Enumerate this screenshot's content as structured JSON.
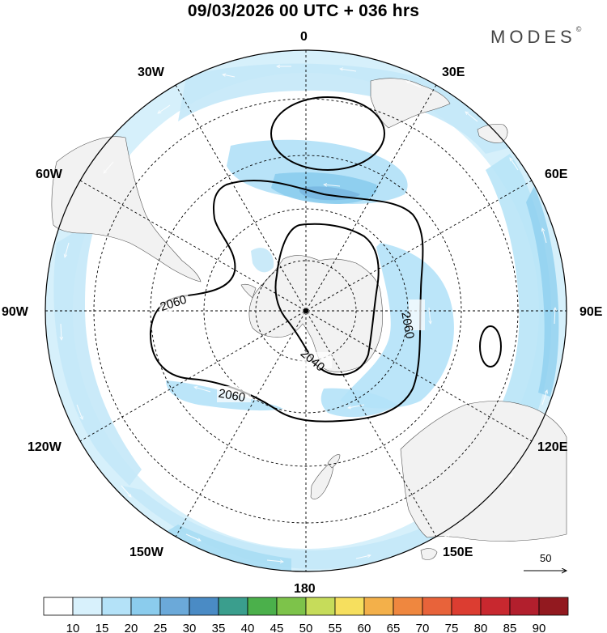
{
  "header": {
    "title": "09/03/2026  00 UTC  + 036 hrs",
    "brand": "MODES"
  },
  "map": {
    "projection": "south-polar-stereographic",
    "longitude_labels": {
      "top": "0",
      "top_right": "30E",
      "right_upper": "60E",
      "right": "90E",
      "right_lower": "120E",
      "bottom_right": "150E",
      "bottom": "180",
      "bottom_left": "150W",
      "left_lower": "120W",
      "left": "90W",
      "left_upper": "60W",
      "top_left": "30W"
    },
    "contour_labels": [
      "2060",
      "2060",
      "2060",
      "2040"
    ],
    "reference_vector": {
      "magnitude": "50"
    }
  },
  "colors": {
    "land": "#f2f2f2",
    "shade_light": "#d6f0fb",
    "shade_mid": "#a6dcf3",
    "shade_dark": "#7fc6ea",
    "contour": "#000000"
  },
  "colorbar": {
    "labels": [
      "10",
      "15",
      "20",
      "25",
      "30",
      "35",
      "40",
      "45",
      "50",
      "55",
      "60",
      "65",
      "70",
      "75",
      "80",
      "85",
      "90"
    ],
    "colors": [
      "#ffffff",
      "#d8f1fc",
      "#b4e2f8",
      "#8bcced",
      "#6ba9d9",
      "#4a8bc5",
      "#3a9e8d",
      "#4bb04b",
      "#7dc34a",
      "#c6dc5a",
      "#f6df5e",
      "#f3b04a",
      "#ef873f",
      "#e8633a",
      "#dc3d31",
      "#c8282f",
      "#b21f2d",
      "#92191f"
    ]
  }
}
